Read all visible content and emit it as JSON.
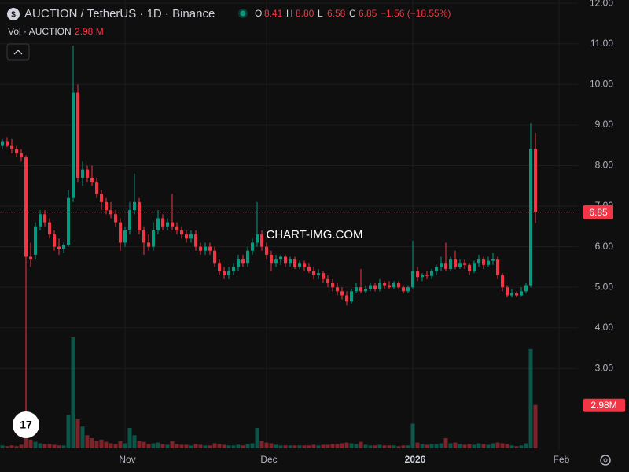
{
  "chart_data": {
    "type": "candlestick",
    "title": "AUCTION / TetherUS · 1D · Binance",
    "ohlc_labels": [
      "O",
      "H",
      "L",
      "C"
    ],
    "header_values": [
      "8.41",
      "8.80",
      "6.58",
      "6.85"
    ],
    "change": "−1.56 (−18.55%)",
    "volume_title": "Vol · AUCTION",
    "volume_label": "2.98 M",
    "volume_axis_label": "2.98M",
    "watermark": "CHART-IMG.COM",
    "up_color": "#089981",
    "down_color": "#f23645",
    "ohlc": [
      [
        8.5,
        8.65,
        8.4,
        8.6
      ],
      [
        8.6,
        8.7,
        8.45,
        8.5
      ],
      [
        8.5,
        8.65,
        8.3,
        8.4
      ],
      [
        8.4,
        8.5,
        8.2,
        8.3
      ],
      [
        8.3,
        8.4,
        8.1,
        8.2
      ],
      [
        8.2,
        8.25,
        1.45,
        5.75
      ],
      [
        5.75,
        6.1,
        5.5,
        5.7
      ],
      [
        5.8,
        6.6,
        5.7,
        6.5
      ],
      [
        6.5,
        6.9,
        6.4,
        6.8
      ],
      [
        6.8,
        6.9,
        6.5,
        6.6
      ],
      [
        6.6,
        6.7,
        6.2,
        6.3
      ],
      [
        6.3,
        6.4,
        5.9,
        6.0
      ],
      [
        6.0,
        6.2,
        5.8,
        5.95
      ],
      [
        5.95,
        6.1,
        5.85,
        6.05
      ],
      [
        6.05,
        7.4,
        6.0,
        7.2
      ],
      [
        7.2,
        10.95,
        7.1,
        9.8
      ],
      [
        9.8,
        10.0,
        7.6,
        7.7
      ],
      [
        7.7,
        8.1,
        7.5,
        7.9
      ],
      [
        7.9,
        8.0,
        7.6,
        7.7
      ],
      [
        7.7,
        8.0,
        7.5,
        7.6
      ],
      [
        7.6,
        7.7,
        7.2,
        7.3
      ],
      [
        7.3,
        7.4,
        6.9,
        7.1
      ],
      [
        7.1,
        7.2,
        6.8,
        6.9
      ],
      [
        6.9,
        7.1,
        6.7,
        6.8
      ],
      [
        6.8,
        6.9,
        6.5,
        6.6
      ],
      [
        6.6,
        6.7,
        5.9,
        6.1
      ],
      [
        6.1,
        6.5,
        6.0,
        6.4
      ],
      [
        6.4,
        7.1,
        6.3,
        6.9
      ],
      [
        6.9,
        7.8,
        6.8,
        7.1
      ],
      [
        7.1,
        7.2,
        6.3,
        6.4
      ],
      [
        6.4,
        6.5,
        5.8,
        6.1
      ],
      [
        6.1,
        6.3,
        5.9,
        6.0
      ],
      [
        6.0,
        6.6,
        5.9,
        6.4
      ],
      [
        6.4,
        6.9,
        6.3,
        6.7
      ],
      [
        6.7,
        6.8,
        6.4,
        6.5
      ],
      [
        6.5,
        6.7,
        6.4,
        6.6
      ],
      [
        6.6,
        7.3,
        6.4,
        6.5
      ],
      [
        6.5,
        6.6,
        6.3,
        6.4
      ],
      [
        6.4,
        6.5,
        6.2,
        6.3
      ],
      [
        6.3,
        6.4,
        6.1,
        6.2
      ],
      [
        6.2,
        6.4,
        6.1,
        6.3
      ],
      [
        6.3,
        6.4,
        5.9,
        6.0
      ],
      [
        6.0,
        6.1,
        5.8,
        5.9
      ],
      [
        5.9,
        6.1,
        5.8,
        6.0
      ],
      [
        6.0,
        6.1,
        5.8,
        5.9
      ],
      [
        5.9,
        6.0,
        5.5,
        5.6
      ],
      [
        5.6,
        5.7,
        5.3,
        5.4
      ],
      [
        5.4,
        5.5,
        5.2,
        5.3
      ],
      [
        5.3,
        5.5,
        5.2,
        5.4
      ],
      [
        5.4,
        5.6,
        5.3,
        5.5
      ],
      [
        5.5,
        5.8,
        5.4,
        5.7
      ],
      [
        5.7,
        5.8,
        5.5,
        5.6
      ],
      [
        5.6,
        6.0,
        5.5,
        5.9
      ],
      [
        5.9,
        6.2,
        5.8,
        6.1
      ],
      [
        6.1,
        7.1,
        6.0,
        6.3
      ],
      [
        6.3,
        6.4,
        5.9,
        6.0
      ],
      [
        6.0,
        6.1,
        5.7,
        5.8
      ],
      [
        5.8,
        5.9,
        5.4,
        5.6
      ],
      [
        5.6,
        5.8,
        5.5,
        5.7
      ],
      [
        5.7,
        5.8,
        5.55,
        5.75
      ],
      [
        5.75,
        5.8,
        5.5,
        5.6
      ],
      [
        5.6,
        5.75,
        5.5,
        5.7
      ],
      [
        5.7,
        5.75,
        5.45,
        5.5
      ],
      [
        5.5,
        5.65,
        5.45,
        5.6
      ],
      [
        5.6,
        5.65,
        5.4,
        5.5
      ],
      [
        5.5,
        5.6,
        5.35,
        5.4
      ],
      [
        5.4,
        5.5,
        5.2,
        5.3
      ],
      [
        5.3,
        5.45,
        5.2,
        5.35
      ],
      [
        5.35,
        5.4,
        5.1,
        5.2
      ],
      [
        5.2,
        5.3,
        5.0,
        5.1
      ],
      [
        5.1,
        5.2,
        4.9,
        5.0
      ],
      [
        5.0,
        5.1,
        4.8,
        4.9
      ],
      [
        4.9,
        5.0,
        4.7,
        4.8
      ],
      [
        4.8,
        4.9,
        4.55,
        4.65
      ],
      [
        4.65,
        4.95,
        4.6,
        4.9
      ],
      [
        4.9,
        5.1,
        4.85,
        5.0
      ],
      [
        5.0,
        5.45,
        4.85,
        4.9
      ],
      [
        4.9,
        5.05,
        4.85,
        4.95
      ],
      [
        4.95,
        5.1,
        4.9,
        5.05
      ],
      [
        5.05,
        5.1,
        4.9,
        4.95
      ],
      [
        4.95,
        5.2,
        4.9,
        5.1
      ],
      [
        5.1,
        5.15,
        4.95,
        5.05
      ],
      [
        5.05,
        5.15,
        4.95,
        5.0
      ],
      [
        5.0,
        5.15,
        4.95,
        5.1
      ],
      [
        5.1,
        5.15,
        4.95,
        5.0
      ],
      [
        5.0,
        5.05,
        4.85,
        4.9
      ],
      [
        4.9,
        5.05,
        4.85,
        5.0
      ],
      [
        5.0,
        6.15,
        4.95,
        5.4
      ],
      [
        5.4,
        5.5,
        5.15,
        5.25
      ],
      [
        5.25,
        5.35,
        5.15,
        5.3
      ],
      [
        5.3,
        5.4,
        5.2,
        5.28
      ],
      [
        5.28,
        5.45,
        5.2,
        5.4
      ],
      [
        5.4,
        5.55,
        5.3,
        5.5
      ],
      [
        5.5,
        5.75,
        5.4,
        5.6
      ],
      [
        5.6,
        6.1,
        5.4,
        5.45
      ],
      [
        5.45,
        5.75,
        5.4,
        5.7
      ],
      [
        5.7,
        5.9,
        5.45,
        5.5
      ],
      [
        5.5,
        5.7,
        5.45,
        5.6
      ],
      [
        5.6,
        5.7,
        5.45,
        5.55
      ],
      [
        5.55,
        5.6,
        5.3,
        5.4
      ],
      [
        5.4,
        5.65,
        5.35,
        5.6
      ],
      [
        5.6,
        5.8,
        5.5,
        5.7
      ],
      [
        5.7,
        5.75,
        5.45,
        5.55
      ],
      [
        5.55,
        5.75,
        5.5,
        5.65
      ],
      [
        5.65,
        5.85,
        5.55,
        5.7
      ],
      [
        5.7,
        5.75,
        5.2,
        5.3
      ],
      [
        5.3,
        5.35,
        4.9,
        5.0
      ],
      [
        5.0,
        5.05,
        4.75,
        4.8
      ],
      [
        4.8,
        4.95,
        4.75,
        4.85
      ],
      [
        4.85,
        4.9,
        4.75,
        4.8
      ],
      [
        4.8,
        5.0,
        4.78,
        4.9
      ],
      [
        4.9,
        5.1,
        4.85,
        5.05
      ],
      [
        5.05,
        9.05,
        5.0,
        8.41
      ],
      [
        8.41,
        8.8,
        6.58,
        6.85
      ]
    ],
    "volume": [
      0.2,
      0.15,
      0.2,
      0.15,
      0.25,
      1.2,
      0.6,
      0.45,
      0.35,
      0.3,
      0.3,
      0.25,
      0.2,
      0.2,
      2.3,
      7.6,
      2.0,
      1.5,
      0.9,
      0.7,
      0.5,
      0.6,
      0.45,
      0.35,
      0.3,
      0.5,
      0.35,
      1.4,
      0.9,
      0.5,
      0.45,
      0.3,
      0.35,
      0.4,
      0.3,
      0.25,
      0.5,
      0.3,
      0.25,
      0.25,
      0.2,
      0.3,
      0.25,
      0.2,
      0.2,
      0.35,
      0.3,
      0.25,
      0.2,
      0.2,
      0.25,
      0.2,
      0.3,
      0.35,
      1.4,
      0.5,
      0.4,
      0.35,
      0.25,
      0.2,
      0.2,
      0.2,
      0.2,
      0.2,
      0.2,
      0.2,
      0.25,
      0.2,
      0.25,
      0.25,
      0.3,
      0.3,
      0.35,
      0.4,
      0.35,
      0.3,
      0.45,
      0.25,
      0.2,
      0.2,
      0.25,
      0.2,
      0.2,
      0.2,
      0.15,
      0.2,
      0.2,
      1.7,
      0.4,
      0.3,
      0.25,
      0.3,
      0.3,
      0.35,
      0.7,
      0.35,
      0.4,
      0.3,
      0.25,
      0.3,
      0.25,
      0.35,
      0.3,
      0.25,
      0.35,
      0.4,
      0.35,
      0.3,
      0.2,
      0.15,
      0.2,
      0.35,
      6.8,
      2.98
    ],
    "xlim": [
      -0.5,
      122
    ],
    "xticks": [
      {
        "value": 26,
        "label": "Nov"
      },
      {
        "value": 56,
        "label": "Dec"
      },
      {
        "value": 87,
        "label": "2026"
      },
      {
        "value": 118,
        "label": "Feb"
      }
    ],
    "ylim": [
      0.99,
      12.08
    ],
    "yticks": [
      {
        "value": 3,
        "label": "3.00"
      },
      {
        "value": 4,
        "label": "4.00"
      },
      {
        "value": 5,
        "label": "5.00"
      },
      {
        "value": 6,
        "label": "6.00"
      },
      {
        "value": 7,
        "label": "7.00"
      },
      {
        "value": 8,
        "label": "8.00"
      },
      {
        "value": 9,
        "label": "9.00"
      },
      {
        "value": 10,
        "label": "10.00"
      },
      {
        "value": 11,
        "label": "11.00"
      },
      {
        "value": 12,
        "label": "12.00"
      }
    ],
    "grid": true
  }
}
